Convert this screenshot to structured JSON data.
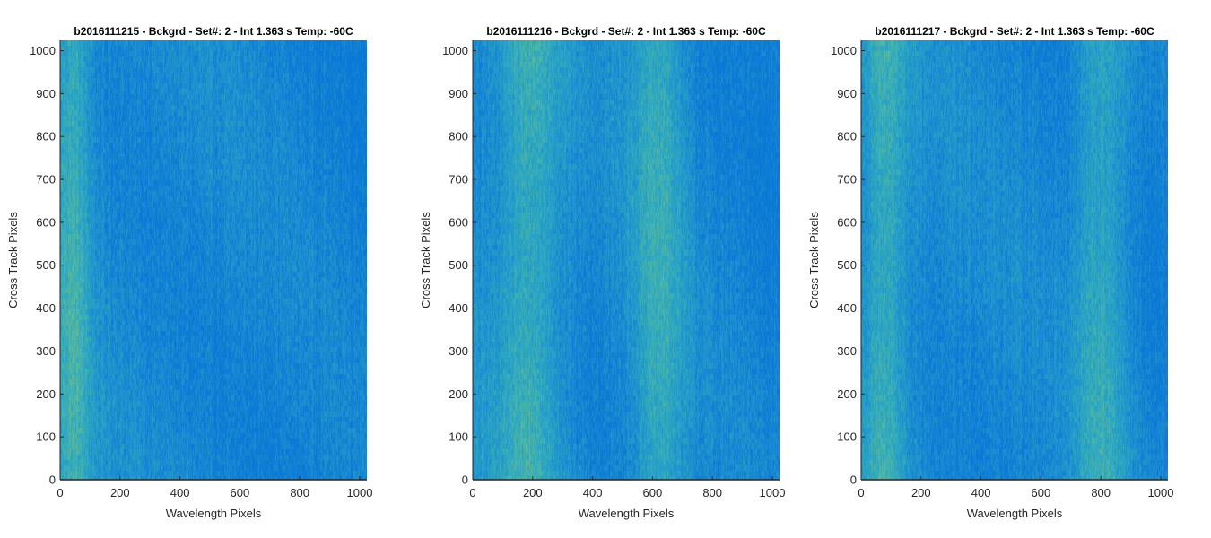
{
  "chart_data": [
    {
      "type": "heatmap",
      "title": "b2016111215 - Bckgrd - Set#: 2 - Int 1.363 s Temp: -60C",
      "xlabel": "Wavelength Pixels",
      "ylabel": "Cross Track Pixels",
      "xlim": [
        0,
        1024
      ],
      "ylim": [
        0,
        1024
      ],
      "xticks": [
        0,
        200,
        400,
        600,
        800,
        1000
      ],
      "xtick_labels": [
        "0",
        "200",
        "400",
        "600",
        "800",
        "1000"
      ],
      "yticks": [
        0,
        100,
        200,
        300,
        400,
        500,
        600,
        700,
        800,
        900,
        1000
      ],
      "ytick_labels": [
        "0",
        "100",
        "200",
        "300",
        "400",
        "500",
        "600",
        "700",
        "800",
        "900",
        "1000"
      ],
      "colormap": [
        "#0a78d6",
        "#1e90d0",
        "#2ca8c2",
        "#55b8a0",
        "#a6c068"
      ],
      "warm_band_centers_x": [
        40
      ],
      "warm_band_widths_x": [
        60
      ]
    },
    {
      "type": "heatmap",
      "title": "b2016111216 - Bckgrd - Set#: 2 - Int 1.363 s Temp: -60C",
      "xlabel": "Wavelength Pixels",
      "ylabel": "Cross Track Pixels",
      "xlim": [
        0,
        1024
      ],
      "ylim": [
        0,
        1024
      ],
      "xticks": [
        0,
        200,
        400,
        600,
        800,
        1000
      ],
      "xtick_labels": [
        "0",
        "200",
        "400",
        "600",
        "800",
        "1000"
      ],
      "yticks": [
        0,
        100,
        200,
        300,
        400,
        500,
        600,
        700,
        800,
        900,
        1000
      ],
      "ytick_labels": [
        "0",
        "100",
        "200",
        "300",
        "400",
        "500",
        "600",
        "700",
        "800",
        "900",
        "1000"
      ],
      "colormap": [
        "#0a78d6",
        "#1e90d0",
        "#2ca8c2",
        "#55b8a0",
        "#a6c068"
      ],
      "warm_band_centers_x": [
        190,
        620
      ],
      "warm_band_widths_x": [
        110,
        90
      ]
    },
    {
      "type": "heatmap",
      "title": "b2016111217 - Bckgrd - Set#: 2 - Int 1.363 s Temp: -60C",
      "xlabel": "Wavelength Pixels",
      "ylabel": "Cross Track Pixels",
      "xlim": [
        0,
        1024
      ],
      "ylim": [
        0,
        1024
      ],
      "xticks": [
        0,
        200,
        400,
        600,
        800,
        1000
      ],
      "xtick_labels": [
        "0",
        "200",
        "400",
        "600",
        "800",
        "1000"
      ],
      "yticks": [
        0,
        100,
        200,
        300,
        400,
        500,
        600,
        700,
        800,
        900,
        1000
      ],
      "ytick_labels": [
        "0",
        "100",
        "200",
        "300",
        "400",
        "500",
        "600",
        "700",
        "800",
        "900",
        "1000"
      ],
      "colormap": [
        "#0a78d6",
        "#1e90d0",
        "#2ca8c2",
        "#55b8a0",
        "#a6c068"
      ],
      "warm_band_centers_x": [
        80,
        800
      ],
      "warm_band_widths_x": [
        70,
        90
      ]
    }
  ]
}
